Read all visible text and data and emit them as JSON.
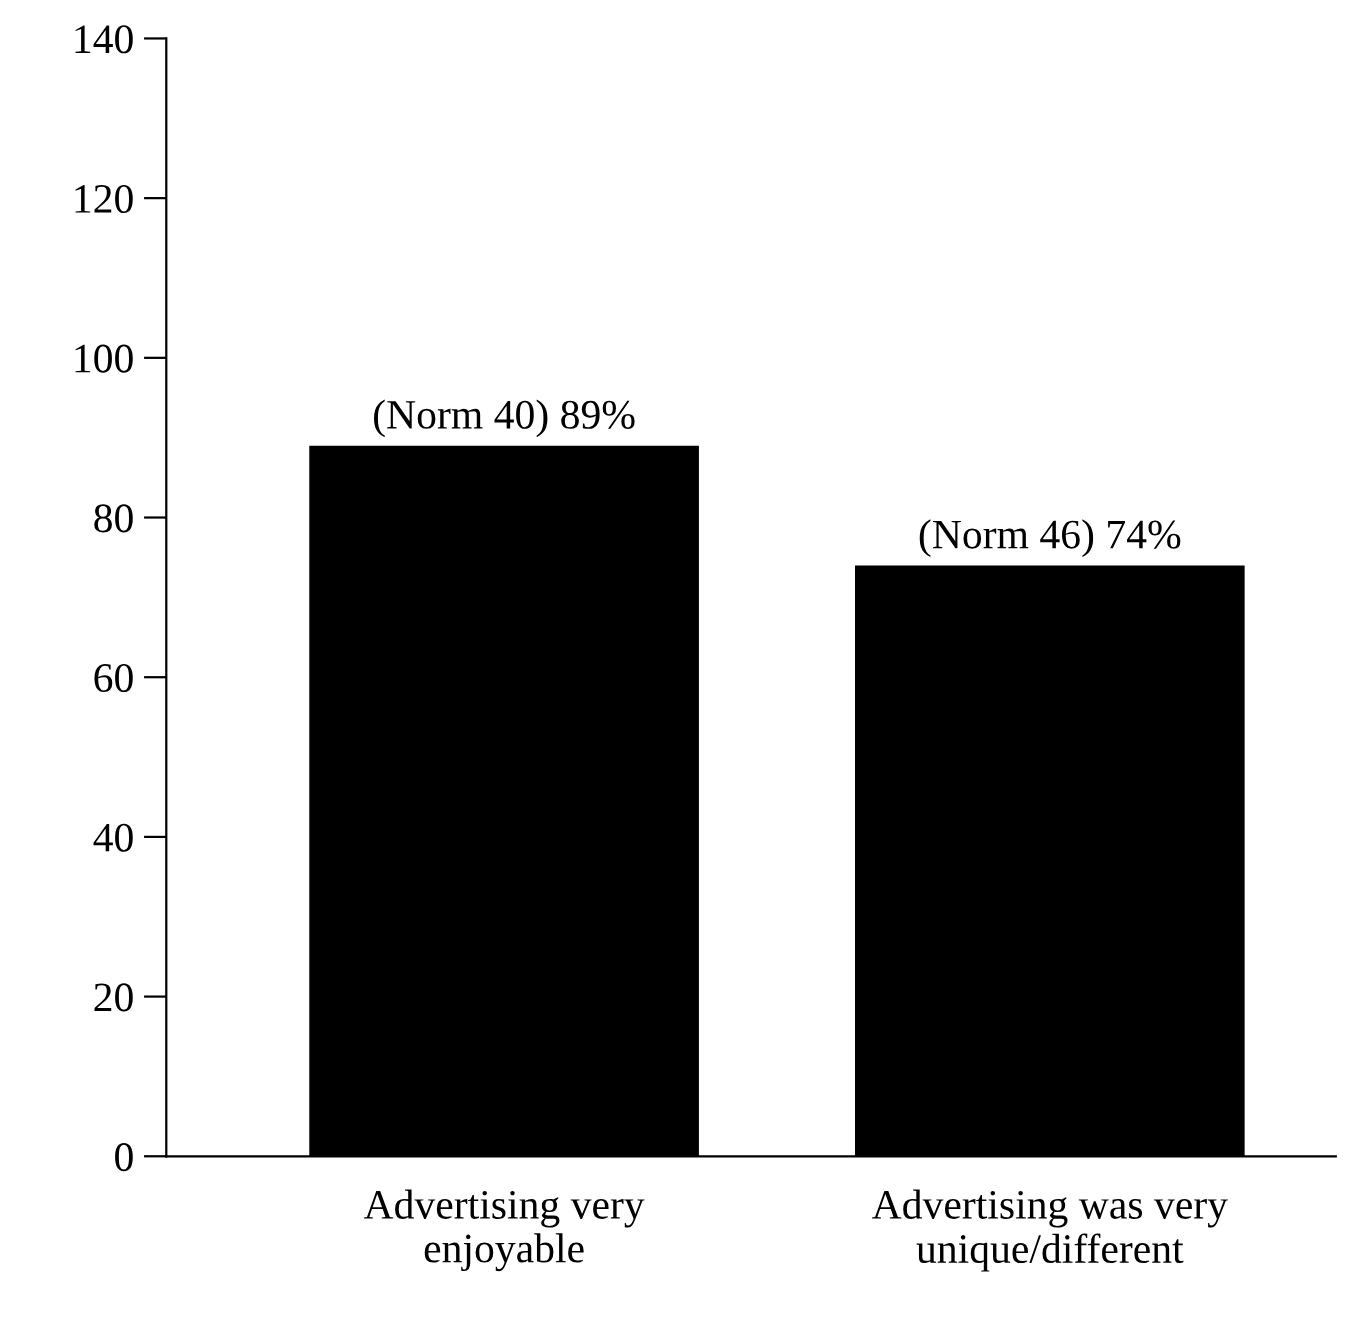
{
  "chart_data": {
    "type": "bar",
    "categories": [
      "Advertising very\nenjoyable",
      "Advertising was very\nunique/different"
    ],
    "values": [
      89,
      74
    ],
    "value_labels": [
      "(Norm 40) 89%",
      "(Norm 46) 74%"
    ],
    "color": "#000000",
    "ylim": [
      0,
      140
    ],
    "yticks": [
      0,
      20,
      40,
      60,
      80,
      100,
      120,
      140
    ],
    "grid": false,
    "legend": false
  }
}
